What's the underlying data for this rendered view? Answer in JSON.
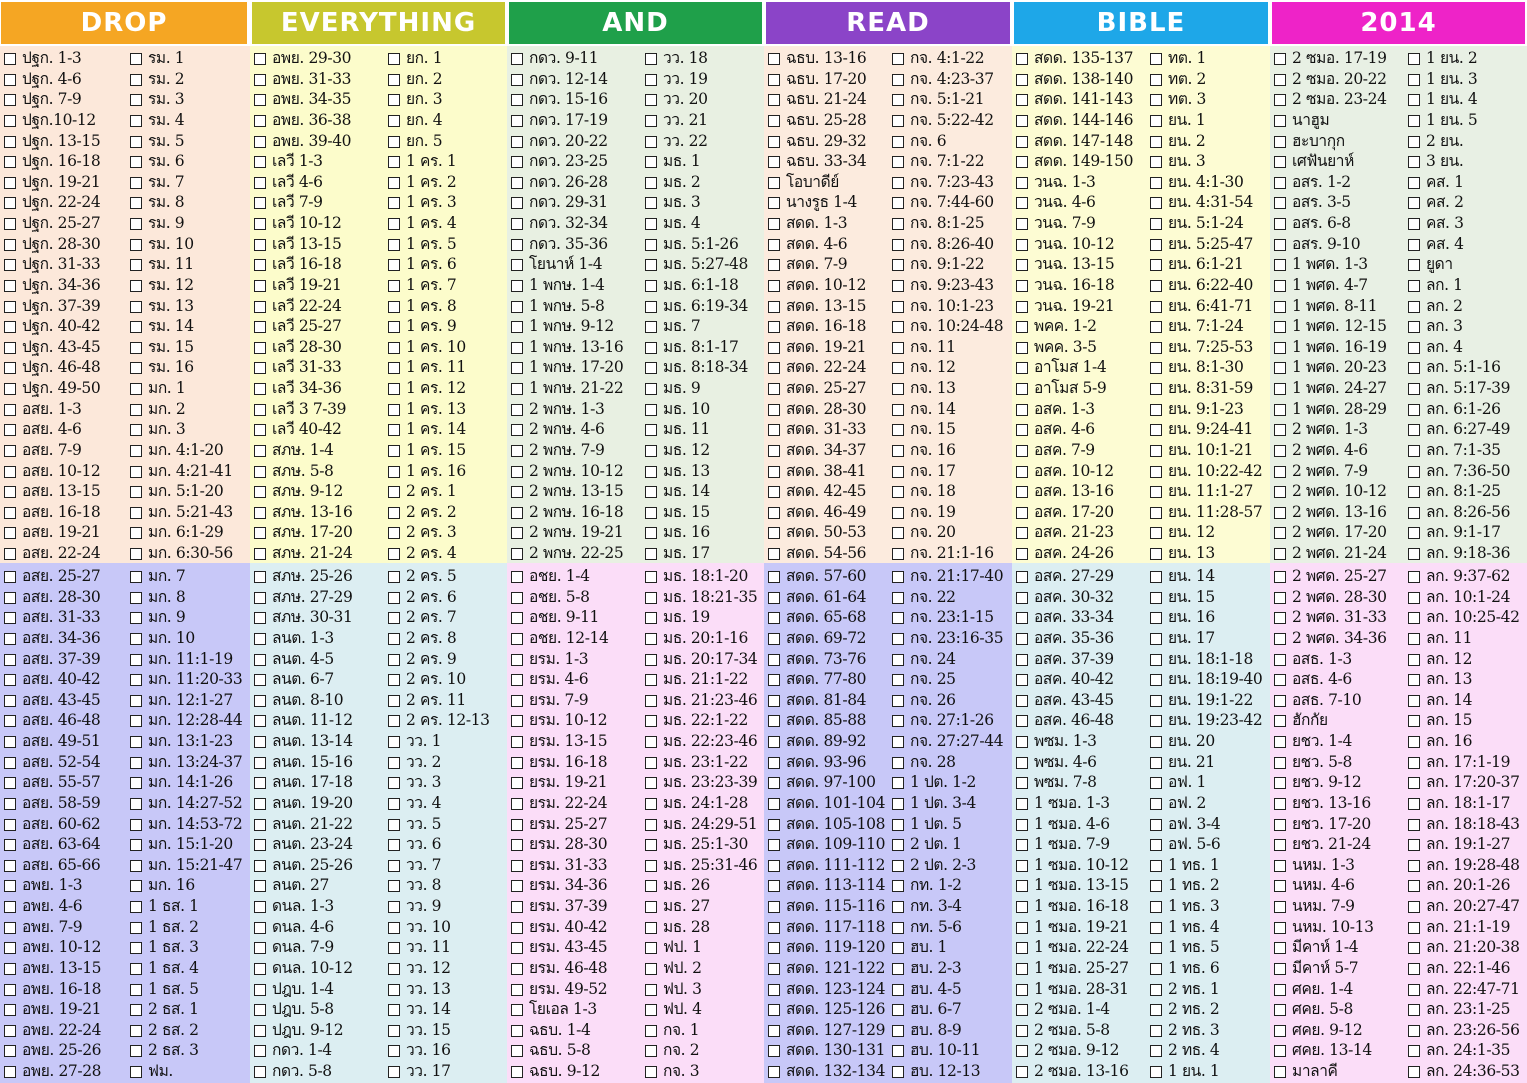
{
  "headers": [
    {
      "label": "DROP",
      "color": "#F5A623"
    },
    {
      "label": "EVERYTHING",
      "color": "#C7C72E"
    },
    {
      "label": "AND",
      "color": "#1FA04A"
    },
    {
      "label": "READ",
      "color": "#8B44C8"
    },
    {
      "label": "BIBLE",
      "color": "#1EA7E8"
    },
    {
      "label": "2014",
      "color": "#EE23C8"
    }
  ],
  "backgrounds": {
    "top": [
      "#FCE8DA",
      "#FCFCCB",
      "#E8F0E2",
      "#FCEBDE",
      "#FDFCD3",
      "#E8F0E4"
    ],
    "bottom": [
      "#C8C8F8",
      "#DCEEF2",
      "#FBDDF8",
      "#C8C8F8",
      "#DCEEF2",
      "#FBDDF8"
    ]
  },
  "columns": [
    [
      "ปฐก. 1-3",
      "ปฐก. 4-6",
      "ปฐก. 7-9",
      "ปฐก.10-12",
      "ปฐก. 13-15",
      "ปฐก. 16-18",
      "ปฐก. 19-21",
      "ปฐก. 22-24",
      "ปฐก. 25-27",
      "ปฐก. 28-30",
      "ปฐก. 31-33",
      "ปฐก. 34-36",
      "ปฐก. 37-39",
      "ปฐก. 40-42",
      "ปฐก. 43-45",
      "ปฐก. 46-48",
      "ปฐก. 49-50",
      "อสย. 1-3",
      "อสย. 4-6",
      "อสย. 7-9",
      "อสย. 10-12",
      "อสย. 13-15",
      "อสย. 16-18",
      "อสย. 19-21",
      "อสย. 22-24",
      "อสย. 25-27",
      "อสย. 28-30",
      "อสย. 31-33",
      "อสย. 34-36",
      "อสย. 37-39",
      "อสย. 40-42",
      "อสย. 43-45",
      "อสย. 46-48",
      "อสย. 49-51",
      "อสย. 52-54",
      "อสย. 55-57",
      "อสย. 58-59",
      "อสย. 60-62",
      "อสย. 63-64",
      "อสย. 65-66",
      "อพย. 1-3",
      "อพย. 4-6",
      "อพย. 7-9",
      "อพย. 10-12",
      "อพย. 13-15",
      "อพย. 16-18",
      "อพย. 19-21",
      "อพย. 22-24",
      "อพย. 25-26",
      "อพย. 27-28"
    ],
    [
      "รม. 1",
      "รม. 2",
      "รม. 3",
      "รม. 4",
      "รม. 5",
      "รม. 6",
      "รม. 7",
      "รม. 8",
      "รม. 9",
      "รม. 10",
      "รม. 11",
      "รม. 12",
      "รม. 13",
      "รม. 14",
      "รม. 15",
      "รม. 16",
      "มก. 1",
      "มก. 2",
      "มก. 3",
      "มก. 4:1-20",
      "มก. 4:21-41",
      "มก. 5:1-20",
      "มก. 5:21-43",
      "มก. 6:1-29",
      "มก. 6:30-56",
      "มก. 7",
      "มก. 8",
      "มก. 9",
      "มก. 10",
      "มก. 11:1-19",
      "มก. 11:20-33",
      "มก. 12:1-27",
      "มก. 12:28-44",
      "มก. 13:1-23",
      "มก. 13:24-37",
      "มก. 14:1-26",
      "มก. 14:27-52",
      "มก. 14:53-72",
      "มก. 15:1-20",
      "มก. 15:21-47",
      "มก. 16",
      "1 ธส. 1",
      "1 ธส. 2",
      "1 ธส. 3",
      "1 ธส. 4",
      "1 ธส. 5",
      "2 ธส. 1",
      "2 ธส. 2",
      "2 ธส. 3",
      "ฟม."
    ],
    [
      "อพย. 29-30",
      "อพย. 31-33",
      "อพย. 34-35",
      "อพย. 36-38",
      "อพย. 39-40",
      "เลวี 1-3",
      "เลวี 4-6",
      "เลวี 7-9",
      "เลวี 10-12",
      "เลวี 13-15",
      "เลวี 16-18",
      "เลวี 19-21",
      "เลวี 22-24",
      "เลวี 25-27",
      "เลวี 28-30",
      "เลวี 31-33",
      "เลวี 34-36",
      "เลวี 3 7-39",
      "เลวี 40-42",
      "สภษ. 1-4",
      "สภษ. 5-8",
      "สภษ. 9-12",
      "สภษ. 13-16",
      "สภษ. 17-20",
      "สภษ. 21-24",
      "สภษ. 25-26",
      "สภษ. 27-29",
      "สภษ. 30-31",
      "ลนต. 1-3",
      "ลนต. 4-5",
      "ลนต. 6-7",
      "ลนต. 8-10",
      "ลนต. 11-12",
      "ลนต. 13-14",
      "ลนต. 15-16",
      "ลนต. 17-18",
      "ลนต. 19-20",
      "ลนต. 21-22",
      "ลนต. 23-24",
      "ลนต. 25-26",
      "ลนต. 27",
      "ดนล. 1-3",
      "ดนล. 4-6",
      "ดนล. 7-9",
      "ดนล. 10-12",
      "ปฎบ. 1-4",
      "ปฎบ. 5-8",
      "ปฎบ. 9-12",
      "กดว. 1-4",
      "กดว. 5-8"
    ],
    [
      "ยก. 1",
      "ยก. 2",
      "ยก. 3",
      "ยก. 4",
      "ยก. 5",
      "1 คร. 1",
      "1 คร. 2",
      "1 คร. 3",
      "1 คร. 4",
      "1 คร. 5",
      "1 คร. 6",
      "1 คร. 7",
      "1 คร. 8",
      "1 คร. 9",
      "1 คร. 10",
      "1 คร. 11",
      "1 คร. 12",
      "1 คร. 13",
      "1 คร. 14",
      "1 คร. 15",
      "1 คร. 16",
      "2 คร. 1",
      "2 คร. 2",
      "2 คร. 3",
      "2 คร. 4",
      "2 คร. 5",
      "2 คร. 6",
      "2 คร. 7",
      "2 คร. 8",
      "2 คร. 9",
      "2 คร. 10",
      "2 คร. 11",
      "2 คร. 12-13",
      "วว. 1",
      "วว. 2",
      "วว. 3",
      "วว. 4",
      "วว. 5",
      "วว. 6",
      "วว. 7",
      "วว. 8",
      "วว. 9",
      "วว. 10",
      "วว. 11",
      "วว. 12",
      "วว. 13",
      "วว. 14",
      "วว. 15",
      "วว. 16",
      "วว. 17"
    ],
    [
      "กดว. 9-11",
      "กดว. 12-14",
      "กดว. 15-16",
      "กดว. 17-19",
      "กดว. 20-22",
      "กดว. 23-25",
      "กดว. 26-28",
      "กดว. 29-31",
      "กดว. 32-34",
      "กดว. 35-36",
      "โยนาห์ 1-4",
      "1 พกษ. 1-4",
      "1 พกษ. 5-8",
      "1 พกษ. 9-12",
      "1 พกษ. 13-16",
      "1 พกษ. 17-20",
      "1 พกษ. 21-22",
      "2 พกษ. 1-3",
      "2 พกษ. 4-6",
      "2 พกษ. 7-9",
      "2 พกษ. 10-12",
      "2 พกษ. 13-15",
      "2 พกษ. 16-18",
      "2 พกษ. 19-21",
      "2 พกษ. 22-25",
      "อชย. 1-4",
      "อชย. 5-8",
      "อชย. 9-11",
      "อชย. 12-14",
      "ยรม. 1-3",
      "ยรม. 4-6",
      "ยรม. 7-9",
      "ยรม. 10-12",
      "ยรม. 13-15",
      "ยรม. 16-18",
      "ยรม. 19-21",
      "ยรม. 22-24",
      "ยรม. 25-27",
      "ยรม. 28-30",
      "ยรม. 31-33",
      "ยรม. 34-36",
      "ยรม. 37-39",
      "ยรม. 40-42",
      "ยรม. 43-45",
      "ยรม. 46-48",
      "ยรม. 49-52",
      "โยเอล 1-3",
      "ฉธบ. 1-4",
      "ฉธบ. 5-8",
      "ฉธบ. 9-12"
    ],
    [
      "วว. 18",
      "วว. 19",
      "วว. 20",
      "วว. 21",
      "วว. 22",
      "มธ. 1",
      "มธ. 2",
      "มธ. 3",
      "มธ. 4",
      "มธ. 5:1-26",
      "มธ. 5:27-48",
      "มธ. 6:1-18",
      "มธ. 6:19-34",
      "มธ. 7",
      "มธ. 8:1-17",
      "มธ. 8:18-34",
      "มธ. 9",
      "มธ. 10",
      "มธ. 11",
      "มธ. 12",
      "มธ. 13",
      "มธ. 14",
      "มธ. 15",
      "มธ. 16",
      "มธ. 17",
      "มธ. 18:1-20",
      "มธ. 18:21-35",
      "มธ. 19",
      "มธ. 20:1-16",
      "มธ. 20:17-34",
      "มธ. 21:1-22",
      "มธ. 21:23-46",
      "มธ. 22:1-22",
      "มธ. 22:23-46",
      "มธ. 23:1-22",
      "มธ. 23:23-39",
      "มธ. 24:1-28",
      "มธ. 24:29-51",
      "มธ. 25:1-30",
      "มธ. 25:31-46",
      "มธ. 26",
      "มธ. 27",
      "มธ. 28",
      "ฟป. 1",
      "ฟป. 2",
      "ฟป. 3",
      "ฟป. 4",
      "กจ. 1",
      "กจ. 2",
      "กจ. 3"
    ],
    [
      "ฉธบ. 13-16",
      "ฉธบ. 17-20",
      "ฉธบ. 21-24",
      "ฉธบ. 25-28",
      "ฉธบ. 29-32",
      "ฉธบ. 33-34",
      "โอบาดีย์",
      "นางรูธ 1-4",
      "สดด. 1-3",
      "สดด. 4-6",
      "สดด. 7-9",
      "สดด. 10-12",
      "สดด. 13-15",
      "สดด. 16-18",
      "สดด. 19-21",
      "สดด. 22-24",
      "สดด. 25-27",
      "สดด. 28-30",
      "สดด. 31-33",
      "สดด. 34-37",
      "สดด. 38-41",
      "สดด. 42-45",
      "สดด. 46-49",
      "สดด. 50-53",
      "สดด. 54-56",
      "สดด. 57-60",
      "สดด. 61-64",
      "สดด. 65-68",
      "สดด. 69-72",
      "สดด. 73-76",
      "สดด. 77-80",
      "สดด. 81-84",
      "สดด. 85-88",
      "สดด. 89-92",
      "สดด. 93-96",
      "สดด. 97-100",
      "สดด. 101-104",
      "สดด. 105-108",
      "สดด. 109-110",
      "สดด. 111-112",
      "สดด. 113-114",
      "สดด. 115-116",
      "สดด. 117-118",
      "สดด. 119-120",
      "สดด. 121-122",
      "สดด. 123-124",
      "สดด. 125-126",
      "สดด. 127-129",
      "สดด. 130-131",
      "สดด. 132-134"
    ],
    [
      "กจ. 4:1-22",
      "กจ. 4:23-37",
      "กจ. 5:1-21",
      "กจ. 5:22-42",
      "กจ. 6",
      "กจ. 7:1-22",
      "กจ. 7:23-43",
      "กจ. 7:44-60",
      "กจ. 8:1-25",
      "กจ. 8:26-40",
      "กจ. 9:1-22",
      "กจ. 9:23-43",
      "กจ. 10:1-23",
      "กจ. 10:24-48",
      "กจ. 11",
      "กจ. 12",
      "กจ. 13",
      "กจ. 14",
      "กจ. 15",
      "กจ. 16",
      "กจ. 17",
      "กจ. 18",
      "กจ. 19",
      "กจ. 20",
      "กจ. 21:1-16",
      "กจ. 21:17-40",
      "กจ. 22",
      "กจ. 23:1-15",
      "กจ. 23:16-35",
      "กจ. 24",
      "กจ. 25",
      "กจ. 26",
      "กจ. 27:1-26",
      "กจ. 27:27-44",
      "กจ. 28",
      "1 ปต. 1-2",
      "1 ปต. 3-4",
      "1 ปต. 5",
      "2 ปต. 1",
      "2 ปต. 2-3",
      "กท. 1-2",
      "กท. 3-4",
      "กท. 5-6",
      "ฮบ. 1",
      "ฮบ. 2-3",
      "ฮบ. 4-5",
      "ฮบ. 6-7",
      "ฮบ. 8-9",
      "ฮบ. 10-11",
      "ฮบ. 12-13"
    ],
    [
      "สดด. 135-137",
      "สดด. 138-140",
      "สดด. 141-143",
      "สดด. 144-146",
      "สดด. 147-148",
      "สดด. 149-150",
      "วนฉ. 1-3",
      "วนฉ. 4-6",
      "วนฉ. 7-9",
      "วนฉ. 10-12",
      "วนฉ. 13-15",
      "วนฉ. 16-18",
      "วนฉ. 19-21",
      "พคค. 1-2",
      "พคค. 3-5",
      "อาโมส 1-4",
      "อาโมส 5-9",
      "อสค. 1-3",
      "อสค. 4-6",
      "อสค. 7-9",
      "อสค. 10-12",
      "อสค. 13-16",
      "อสค. 17-20",
      "อสค. 21-23",
      "อสค. 24-26",
      "อสค. 27-29",
      "อสค. 30-32",
      "อสค. 33-34",
      "อสค. 35-36",
      "อสค. 37-39",
      "อสค. 40-42",
      "อสค. 43-45",
      "อสค. 46-48",
      "พซม. 1-3",
      "พซม. 4-6",
      "พซม. 7-8",
      "1 ซมอ. 1-3",
      "1 ซมอ. 4-6",
      "1 ซมอ. 7-9",
      "1 ซมอ. 10-12",
      "1 ซมอ. 13-15",
      "1 ซมอ. 16-18",
      "1 ซมอ. 19-21",
      "1 ซมอ. 22-24",
      "1 ซมอ. 25-27",
      "1 ซมอ. 28-31",
      "2 ซมอ. 1-4",
      "2 ซมอ. 5-8",
      "2 ซมอ. 9-12",
      "2 ซมอ. 13-16"
    ],
    [
      "ทต. 1",
      "ทต. 2",
      "ทต. 3",
      "ยน. 1",
      "ยน. 2",
      "ยน. 3",
      "ยน. 4:1-30",
      "ยน. 4:31-54",
      "ยน. 5:1-24",
      "ยน. 5:25-47",
      "ยน. 6:1-21",
      "ยน. 6:22-40",
      "ยน. 6:41-71",
      "ยน. 7:1-24",
      "ยน. 7:25-53",
      "ยน. 8:1-30",
      "ยน. 8:31-59",
      "ยน. 9:1-23",
      "ยน. 9:24-41",
      "ยน. 10:1-21",
      "ยน. 10:22-42",
      "ยน. 11:1-27",
      "ยน. 11:28-57",
      "ยน. 12",
      "ยน. 13",
      "ยน. 14",
      "ยน. 15",
      "ยน. 16",
      "ยน. 17",
      "ยน. 18:1-18",
      "ยน. 18:19-40",
      "ยน. 19:1-22",
      "ยน. 19:23-42",
      "ยน. 20",
      "ยน. 21",
      "อฟ. 1",
      "อฟ. 2",
      "อฟ. 3-4",
      "อฟ. 5-6",
      "1 ทธ. 1",
      "1 ทธ. 2",
      "1 ทธ. 3",
      "1 ทธ. 4",
      "1 ทธ. 5",
      "1 ทธ. 6",
      "2 ทธ. 1",
      "2 ทธ. 2",
      "2 ทธ. 3",
      "2 ทธ. 4",
      "1 ยน. 1"
    ],
    [
      "2 ซมอ. 17-19",
      "2 ซมอ. 20-22",
      "2 ซมอ. 23-24",
      "นาฮูม",
      "ฮะบากุก",
      "เศฟันยาห์",
      "อสร. 1-2",
      "อสร. 3-5",
      "อสร. 6-8",
      "อสร. 9-10",
      "1 พศด. 1-3",
      "1 พศด. 4-7",
      "1 พศด. 8-11",
      "1 พศด. 12-15",
      "1 พศด. 16-19",
      "1 พศด. 20-23",
      "1 พศด. 24-27",
      "1 พศด. 28-29",
      "2 พศด. 1-3",
      "2 พศด. 4-6",
      "2 พศด. 7-9",
      "2 พศด. 10-12",
      "2 พศด. 13-16",
      "2 พศด. 17-20",
      "2 พศด. 21-24",
      "2 พศด. 25-27",
      "2 พศด. 28-30",
      "2 พศด. 31-33",
      "2 พศด. 34-36",
      "อสธ. 1-3",
      "อสธ. 4-6",
      "อสธ. 7-10",
      "ฮักกัย",
      "ยชว. 1-4",
      "ยชว. 5-8",
      "ยชว. 9-12",
      "ยชว. 13-16",
      "ยชว. 17-20",
      "ยชว. 21-24",
      "นหม. 1-3",
      "นหม. 4-6",
      "นหม. 7-9",
      "นหม. 10-13",
      "มีคาห์ 1-4",
      "มีคาห์ 5-7",
      "ศคย. 1-4",
      "ศคย. 5-8",
      "ศคย. 9-12",
      "ศคย. 13-14",
      "มาลาคี"
    ],
    [
      "1 ยน. 2",
      "1 ยน. 3",
      "1 ยน. 4",
      "1 ยน. 5",
      "2 ยน.",
      "3 ยน.",
      "คส. 1",
      "คส. 2",
      "คส. 3",
      "คส. 4",
      "ยูดา",
      "ลก. 1",
      "ลก. 2",
      "ลก. 3",
      "ลก. 4",
      "ลก. 5:1-16",
      "ลก. 5:17-39",
      "ลก. 6:1-26",
      "ลก. 6:27-49",
      "ลก. 7:1-35",
      "ลก. 7:36-50",
      "ลก. 8:1-25",
      "ลก. 8:26-56",
      "ลก. 9:1-17",
      "ลก. 9:18-36",
      "ลก. 9:37-62",
      "ลก. 10:1-24",
      "ลก. 10:25-42",
      "ลก. 11",
      "ลก. 12",
      "ลก. 13",
      "ลก. 14",
      "ลก. 15",
      "ลก. 16",
      "ลก. 17:1-19",
      "ลก. 17:20-37",
      "ลก. 18:1-17",
      "ลก. 18:18-43",
      "ลก. 19:1-27",
      "ลก. 19:28-48",
      "ลก. 20:1-26",
      "ลก. 20:27-47",
      "ลก. 21:1-19",
      "ลก. 21:20-38",
      "ลก. 22:1-46",
      "ลก. 22:47-71",
      "ลก. 23:1-25",
      "ลก. 23:26-56",
      "ลก. 24:1-35",
      "ลก. 24:36-53"
    ]
  ]
}
